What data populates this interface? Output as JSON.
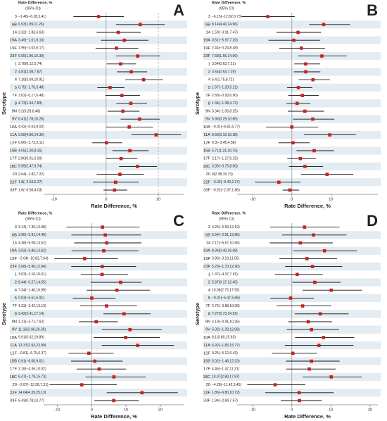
{
  "chart_data": [
    {
      "type": "forest",
      "panel_label": "A",
      "header_lines": [
        "Rate Difference, %",
        "(95% CI)"
      ],
      "y_label": "Serotype",
      "x_label": "Rate Difference, %",
      "categories": [
        "3",
        "6B",
        "14",
        "19A",
        "19F",
        "23F",
        "1",
        "2",
        "4",
        "5",
        "7F",
        "8",
        "9N",
        "9V",
        "10A",
        "11A",
        "12F",
        "15B",
        "17F",
        "18C",
        "20",
        "22F",
        "33F"
      ],
      "values": [
        -1.46,
        6.53,
        2.32,
        3.49,
        1.96,
        6.05,
        2.78,
        4.81,
        7.18,
        0.75,
        3.02,
        4.73,
        3.2,
        6.41,
        4.42,
        9.58,
        0.06,
        4.55,
        2.86,
        5.99,
        2.64,
        1.8,
        1.6
      ],
      "lower": [
        -6.28,
        1.89,
        -1.83,
        -1.01,
        -2.03,
        1.86,
        0.12,
        2.08,
        3.69,
        -1.7,
        -0.17,
        1.94,
        0.28,
        2.78,
        -0.04,
        4.86,
        -2.73,
        1.2,
        0.01,
        2.47,
        -1.82,
        -2.53,
        -0.5
      ],
      "upper": [
        3.41,
        11.26,
        6.63,
        8.1,
        6.17,
        10.39,
        5.74,
        7.87,
        10.91,
        3.48,
        6.48,
        7.83,
        6.4,
        10.26,
        9.0,
        14.36,
        3.11,
        8.15,
        6.0,
        9.74,
        7.22,
        6.27,
        4.03
      ],
      "value_labels": [
        "−1.46(−6.28,3.41)",
        "6.53(1.89,11.26)",
        "2.32(−1.83,6.63)",
        "3.49(−1.01,8.10)",
        "1.96(−2.03,6.17)",
        "6.05(1.86,10.39)",
        "2.78(0.12,5.74)",
        "4.81(2.08,7.87)",
        "7.18(3.69,10.91)",
        "0.75(−1.70,3.48)",
        "3.02(−0.17,6.48)",
        "4.73(1.94,7.83)",
        "3.2(0.28,6.40)",
        "6.41(2.78,10.26)",
        "4.42(−0.04,9.00)",
        "9.58(4.86,14.36)",
        "0.06(−2.73,3.11)",
        "4.55(1.20,8.15)",
        "2.86(0.01,6.00)",
        "5.99(2.47,9.74)",
        "2.64(−1.82,7.22)",
        "1.8(−2.53,6.27)",
        "1.6(−0.50,4.03)"
      ],
      "xlim": [
        -12,
        15
      ],
      "xticks": [
        -10,
        0,
        10
      ],
      "ref_line": 0,
      "dashed_lines": [
        10
      ],
      "color": "#c8231e"
    },
    {
      "type": "forest",
      "panel_label": "B",
      "header_lines": [
        "Rate Difference, %",
        "(95% CI)"
      ],
      "y_label": "Serotype",
      "x_label": "Rate Difference, %",
      "categories": [
        "3",
        "6B",
        "14",
        "19A",
        "19F",
        "23F",
        "1",
        "2",
        "4",
        "5",
        "7F",
        "8",
        "9N",
        "9V",
        "10A",
        "11A",
        "12F",
        "15B",
        "17F",
        "18C",
        "20",
        "22F",
        "33F"
      ],
      "values": [
        -6.15,
        8.14,
        1.59,
        0.51,
        2.44,
        7.68,
        3.54,
        3.54,
        5.4,
        1.67,
        2.68,
        1.34,
        3.34,
        5.35,
        -0.01,
        9.68,
        0.3,
        5.71,
        2.17,
        3.35,
        9,
        -3.32,
        -0.52
      ],
      "lower": [
        -12.82,
        4.4,
        -3.91,
        -5.97,
        -3.24,
        1.55,
        0.63,
        0.53,
        1.75,
        -1.2,
        -0.93,
        -1.38,
        -1.05,
        0.29,
        -6.61,
        3.12,
        -3.45,
        1.21,
        -1.17,
        -0.75,
        2.38,
        -9.4,
        -2.37
      ],
      "upper": [
        0.73,
        14.96,
        7.47,
        7.2,
        8.48,
        14.06,
        7.21,
        7.29,
        9.72,
        5.21,
        6.9,
        4.72,
        8.25,
        10.86,
        6.77,
        16.38,
        4.58,
        10.75,
        6.15,
        8.0,
        15.73,
        2.17,
        1.86
      ],
      "value_labels": [
        "−6.15(−12.82,0.73)",
        "8.14(4.40,14.96)",
        "1.59(−3.91,7.47)",
        "0.51(−5.97,7.20)",
        "2.44(−3.24,8.48)",
        "7.68(1.55,14.06)",
        "3.54(0.63,7.21)",
        "3.54(0.53,7.29)",
        "5.4(1.75,9.72)",
        "1.67(−1.20,5.21)",
        "2.68(−0.93,6.90)",
        "1.34(−1.38,4.72)",
        "3.34(−1.05,8.25)",
        "5.35(0.29,10.86)",
        "−0.01(−6.61,6.77)",
        "9.68(3.12,16.38)",
        "0.3(−3.45,4.58)",
        "5.71(1.21,10.75)",
        "2.17(−1.17,6.15)",
        "3.35(−0.75,8.00)",
        "9(2.38,15.73)",
        "−3.32(−9.40,2.17)",
        "−0.52(−2.37,1.86)"
      ],
      "xlim": [
        -14,
        22
      ],
      "xticks": [
        -10,
        0,
        10
      ],
      "ref_line": 0,
      "color": "#c8231e"
    },
    {
      "type": "forest",
      "panel_label": "C",
      "header_lines": [
        "Rate Difference, %",
        "(95% CI)"
      ],
      "y_label": "Serotype",
      "x_label": "Rate Difference, %",
      "categories": [
        "3",
        "6B",
        "14",
        "19A",
        "19F",
        "23F",
        "1",
        "2",
        "4",
        "5",
        "7F",
        "8",
        "9N",
        "9V",
        "10A",
        "11A",
        "12F",
        "15B",
        "17F",
        "18C",
        "20",
        "22F",
        "33F"
      ],
      "values": [
        3.14,
        3.96,
        4.38,
        3.52,
        -2.04,
        3.08,
        3.03,
        8.44,
        7.34,
        0.03,
        4.33,
        9.42,
        1.31,
        11.16,
        9.91,
        13.37,
        -0.81,
        0.91,
        2.18,
        6.47,
        -2.87,
        14.64,
        6.43
      ],
      "lower": [
        -7.36,
        -5.91,
        -5.08,
        -5.86,
        -10.82,
        -5.96,
        -3.16,
        -0.27,
        -1.46,
        -5.51,
        -3.42,
        3.41,
        -3.71,
        2.96,
        0.62,
        2.93,
        -6.75,
        -6.0,
        -4.36,
        -1.79,
        -12.28,
        4.39,
        0.78
      ],
      "upper": [
        13.98,
        14.4,
        14.52,
        13.62,
        7.64,
        12.94,
        10.61,
        14.55,
        16.99,
        6.91,
        13.19,
        17.14,
        7.62,
        20.39,
        19.89,
        23.99,
        6.37,
        9.01,
        10.02,
        15.73,
        7.31,
        25.13,
        13.77
      ],
      "value_labels": [
        "3.14(−7.36,13.98)",
        "3.96(−5.91,14.40)",
        "4.38(−5.08,14.52)",
        "3.52(−5.86,13.62)",
        "−2.04(−10.82,7.64)",
        "3.08(−5.96,12.94)",
        "3.03(−3.16,10.61)",
        "8.44(−0.27,14.55)",
        "7.34(−1.46,16.99)",
        "0.03(−5.51,6.91)",
        "4.33(−3.42,13.19)",
        "9.42(3.41,17.14)",
        "1.31(−3.71,7.62)",
        "11.16(2.96,20.39)",
        "9.91(0.62,19.89)",
        "13.37(2.93,23.99)",
        "−0.81(−6.75,6.37)",
        "0.91(−6.00,9.01)",
        "2.18(−4.36,10.02)",
        "6.47(−1.79,15.73)",
        "−2.87(−12.28,7.31)",
        "14.64(4.39,25.13)",
        "6.43(0.78,13.77)"
      ],
      "xlim": [
        -14,
        27
      ],
      "xticks": [
        -10,
        0,
        10,
        20
      ],
      "ref_line": 0,
      "color": "#c8231e"
    },
    {
      "type": "forest",
      "panel_label": "D",
      "header_lines": [
        "Rate Difference, %",
        "(95% CI)"
      ],
      "y_label": "Serotype",
      "x_label": "Rate Difference, %",
      "categories": [
        "3",
        "6B",
        "14",
        "19A",
        "19F",
        "23F",
        "1",
        "2",
        "4",
        "5",
        "7F",
        "8",
        "9N",
        "9V",
        "10A",
        "11A",
        "12F",
        "15B",
        "17F",
        "18C",
        "20",
        "22F",
        "33F"
      ],
      "values": [
        3.25,
        5.54,
        2.17,
        8.36,
        3.86,
        5.29,
        1.37,
        5.87,
        10.06,
        -0.31,
        2.76,
        7.27,
        4.19,
        5.02,
        8.1,
        6.92,
        0.25,
        5.02,
        4.46,
        10.07,
        -4.28,
        1.86,
        1.94
      ],
      "lower": [
        -5.59,
        -2.51,
        -5.67,
        0.4,
        -3.19,
        -1.7,
        -4.37,
        0.17,
        2.73,
        -5.47,
        -3.88,
        0.73,
        -0.91,
        -1.29,
        0.8,
        -1.83,
        -5.12,
        -1.48,
        -1.47,
        2.8,
        -11.42,
        -6.8,
        -2.84
      ],
      "upper": [
        12.19,
        13.96,
        10.46,
        16.68,
        11.55,
        12.9,
        7.91,
        12.45,
        17.92,
        5.68,
        10.08,
        14.52,
        10.26,
        12.08,
        15.93,
        15.77,
        6.43,
        12.23,
        11.21,
        17.87,
        3.45,
        10.72,
        7.67
      ],
      "value_labels": [
        "3.25(−5.59,12.19)",
        "5.54(−2.51,13.96)",
        "2.17(−5.67,10.46)",
        "8.36(0.40,16.68)",
        "3.86(−3.19,11.55)",
        "5.29(−1.70,12.90)",
        "1.37(−4.37,7.91)",
        "5.87(0.17,12.45)",
        "10.06(2.73,17.92)",
        "−0.31(−5.47,5.68)",
        "2.76(−3.88,10.08)",
        "7.27(0.73,14.52)",
        "4.19(−0.91,10.26)",
        "5.02(−1.29,12.08)",
        "8.1(0.80,15.93)",
        "6.92(−1.83,15.77)",
        "0.25(−5.12,6.43)",
        "5.02(−1.48,12.23)",
        "4.46(−1.47,11.21)",
        "10.07(2.80,17.87)",
        "−4.28(−11.42,3.45)",
        "1.86(−6.80,10.72)",
        "1.94(−2.84,7.67)"
      ],
      "xlim": [
        -14,
        22
      ],
      "xticks": [
        -10,
        0,
        10,
        20
      ],
      "ref_line": 0,
      "color": "#c8231e"
    }
  ]
}
